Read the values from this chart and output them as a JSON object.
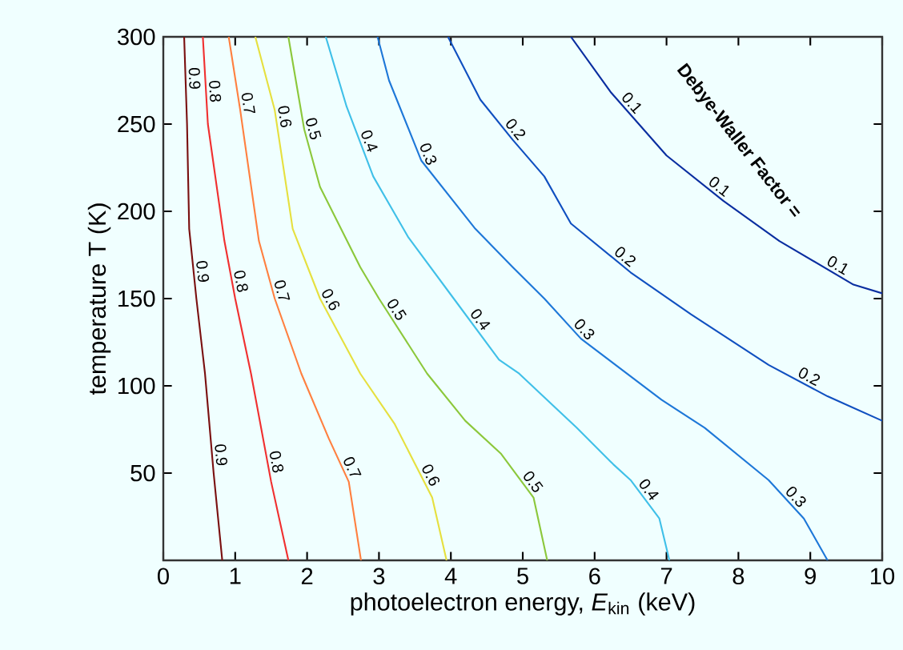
{
  "chart_data": {
    "type": "line",
    "xlabel": "photoelectron energy,  *E*$_{kin}$  (keV)",
    "ylabel": "temperature  T  (K)",
    "xlim": [
      0,
      10
    ],
    "ylim": [
      0,
      300
    ],
    "xticks": [
      0,
      1,
      2,
      3,
      4,
      5,
      6,
      7,
      8,
      9,
      10
    ],
    "yticks": [
      50,
      100,
      150,
      200,
      250,
      300
    ],
    "grid": false,
    "legend": false,
    "marker": "none",
    "line_style": "solid",
    "annotations": [
      "Debye-Waller Factor ="
    ],
    "series": [
      {
        "name": "0.9",
        "color": "#7a1010",
        "x": [
          0.29,
          0.33,
          0.36,
          0.46,
          0.58,
          0.7,
          0.82
        ],
        "values": [
          300,
          250,
          190,
          150,
          107,
          50,
          0
        ]
      },
      {
        "name": "0.8",
        "color": "#f03030",
        "x": [
          0.55,
          0.62,
          0.85,
          1.0,
          1.22,
          1.5,
          1.74
        ],
        "values": [
          300,
          250,
          183,
          150,
          107,
          45,
          0
        ]
      },
      {
        "name": "0.7",
        "color": "#ff8040",
        "x": [
          0.91,
          1.07,
          1.33,
          1.55,
          1.92,
          2.3,
          2.58,
          2.75
        ],
        "values": [
          300,
          258,
          183,
          150,
          107,
          70,
          45,
          0
        ]
      },
      {
        "name": "0.6",
        "color": "#e6e040",
        "x": [
          1.28,
          1.55,
          1.8,
          2.18,
          2.74,
          3.22,
          3.74,
          3.94
        ],
        "values": [
          300,
          258,
          190,
          150,
          107,
          78,
          36,
          0
        ]
      },
      {
        "name": "0.5",
        "color": "#8cc83c",
        "x": [
          1.74,
          1.96,
          2.18,
          2.74,
          3.0,
          3.67,
          4.2,
          4.7,
          5.15,
          5.34
        ],
        "values": [
          300,
          247,
          214,
          168,
          150,
          107,
          80,
          61,
          36,
          0
        ]
      },
      {
        "name": "0.4",
        "color": "#40c0e8",
        "x": [
          2.26,
          2.55,
          2.92,
          3.41,
          4.04,
          4.67,
          4.95,
          5.75,
          6.26,
          6.5,
          6.9,
          7.04
        ],
        "values": [
          300,
          260,
          220,
          185,
          150,
          115,
          107,
          76,
          55,
          46,
          24,
          0
        ]
      },
      {
        "name": "0.3",
        "color": "#1e78d8",
        "x": [
          2.98,
          3.14,
          3.59,
          4.34,
          4.86,
          5.3,
          5.81,
          6.93,
          7.53,
          8.42,
          8.91,
          9.24
        ],
        "values": [
          300,
          275,
          229,
          190,
          168,
          150,
          127,
          92,
          76,
          46,
          24,
          0
        ]
      },
      {
        "name": "0.2",
        "color": "#1050c0",
        "x": [
          3.96,
          4.41,
          4.86,
          5.3,
          5.67,
          6.5,
          7.34,
          8.42,
          9.24,
          10
        ],
        "values": [
          300,
          264,
          241,
          220,
          193,
          165,
          141,
          112,
          94,
          80
        ]
      },
      {
        "name": "0.1",
        "color": "#0a2ea0",
        "x": [
          5.67,
          6.23,
          7.0,
          7.79,
          8.57,
          9.6,
          10
        ],
        "values": [
          300,
          268,
          232,
          206,
          183,
          158,
          153
        ]
      }
    ]
  }
}
